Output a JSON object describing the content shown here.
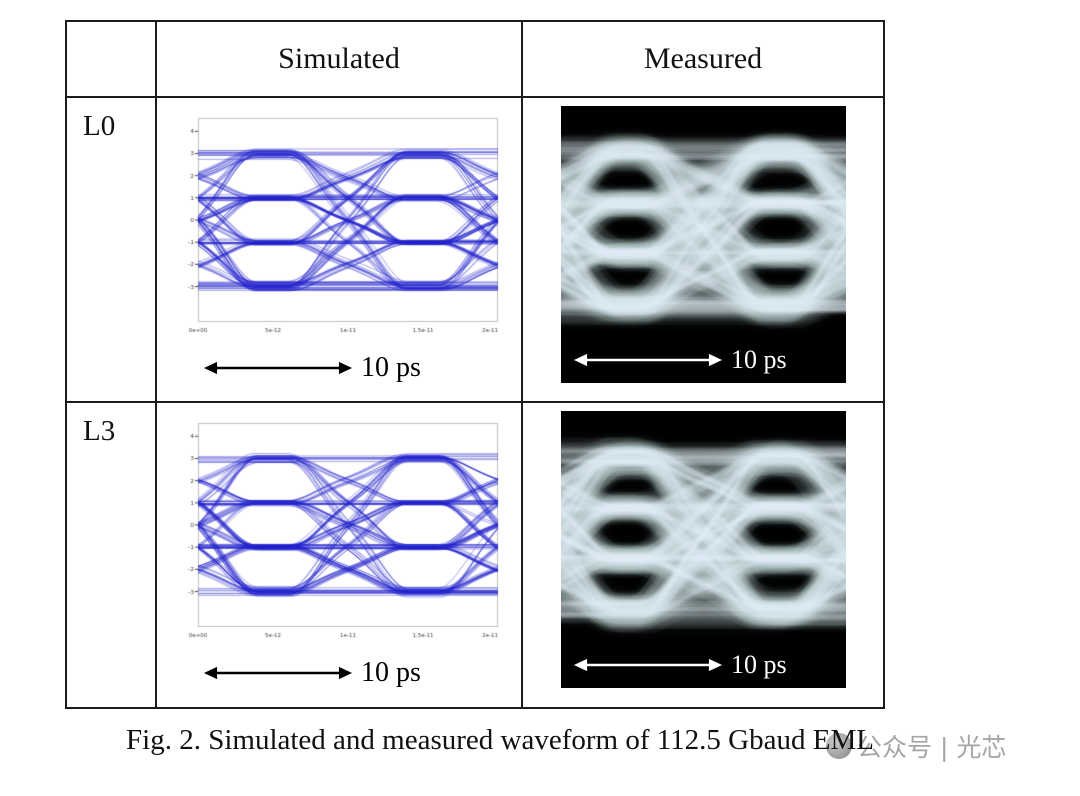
{
  "caption": "Fig. 2. Simulated and measured waveform of 112.5 Gbaud EML",
  "watermark": "公众号 | 光芯",
  "table": {
    "col_headers": [
      "Simulated",
      "Measured"
    ],
    "rows": [
      {
        "label": "L0",
        "scale_label": "10 ps"
      },
      {
        "label": "L3",
        "scale_label": "10 ps"
      }
    ]
  },
  "chart_data": [
    {
      "id": "simulated-L0",
      "type": "line",
      "variant": "eye_diagram",
      "panel": "Simulated L0",
      "modulation": "PAM4",
      "symbol_rate": "112.5 Gbaud",
      "levels": [
        -3,
        -1,
        1,
        3
      ],
      "ylim": [
        -4.6,
        4.6
      ],
      "y_tick_labels": [
        "4",
        "3",
        "2",
        "1",
        "0",
        "-1",
        "-2",
        "-3"
      ],
      "x_tick_labels": [
        "0e+00",
        "5e-12",
        "1e-11",
        "1.5e-11",
        "2e-11"
      ],
      "time_scale_annotation": "10 ps",
      "trace_color": "#2222cc",
      "background": "#ffffff"
    },
    {
      "id": "measured-L0",
      "type": "line",
      "variant": "eye_diagram",
      "panel": "Measured L0",
      "modulation": "PAM4",
      "symbol_rate": "112.5 Gbaud",
      "levels": [
        -3,
        -1,
        1,
        3
      ],
      "ylim": [
        -4.4,
        4.4
      ],
      "time_scale_annotation": "10 ps",
      "trace_color": "#d7ecf4",
      "background": "#000000"
    },
    {
      "id": "simulated-L3",
      "type": "line",
      "variant": "eye_diagram",
      "panel": "Simulated L3",
      "modulation": "PAM4",
      "symbol_rate": "112.5 Gbaud",
      "levels": [
        -3,
        -1,
        1,
        3
      ],
      "ylim": [
        -4.6,
        4.6
      ],
      "y_tick_labels": [
        "4",
        "3",
        "2",
        "1",
        "0",
        "-1",
        "-2",
        "-3"
      ],
      "x_tick_labels": [
        "0e+00",
        "5e-12",
        "1e-11",
        "1.5e-11",
        "2e-11"
      ],
      "time_scale_annotation": "10 ps",
      "trace_color": "#2222cc",
      "background": "#ffffff"
    },
    {
      "id": "measured-L3",
      "type": "line",
      "variant": "eye_diagram",
      "panel": "Measured L3",
      "modulation": "PAM4",
      "symbol_rate": "112.5 Gbaud",
      "levels": [
        -3,
        -1,
        1,
        3
      ],
      "ylim": [
        -4.4,
        4.4
      ],
      "time_scale_annotation": "10 ps",
      "trace_color": "#d7ecf4",
      "background": "#000000"
    }
  ]
}
